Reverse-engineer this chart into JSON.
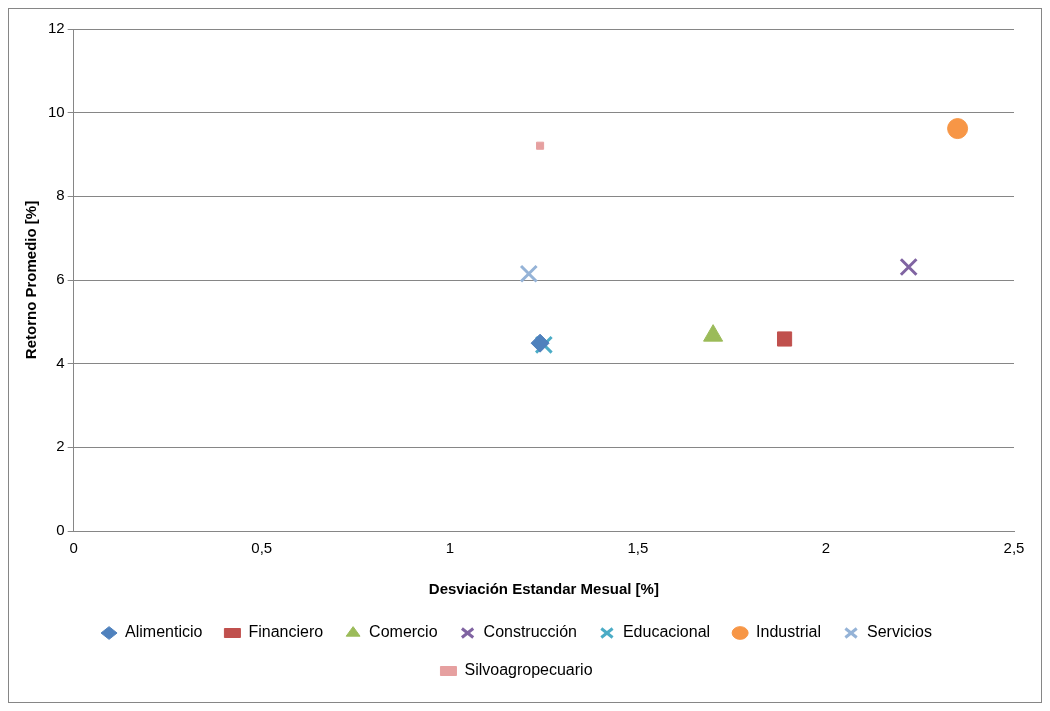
{
  "chart_data": {
    "type": "scatter",
    "xlabel": "Desviación Estandar Mesual [%]",
    "ylabel": "Retorno Promedio [%]",
    "xlim": [
      0,
      2.5
    ],
    "xticks": [
      0,
      {
        "value": 0.5,
        "label": "0,5"
      },
      1,
      {
        "value": 1.5,
        "label": "1,5"
      },
      2,
      {
        "value": 2.5,
        "label": "2,5"
      }
    ],
    "ylim": [
      0,
      12
    ],
    "yticks": [
      0,
      2,
      4,
      6,
      8,
      10,
      12
    ],
    "grid": "y",
    "legend": "bottom",
    "series": [
      {
        "name": "Alimenticio",
        "color": "#4f81bd",
        "marker": "diamond",
        "x": [
          1.24
        ],
        "values": [
          4.49
        ]
      },
      {
        "name": "Financiero",
        "color": "#c0504d",
        "marker": "square",
        "x": [
          1.89
        ],
        "values": [
          4.59
        ]
      },
      {
        "name": "Comercio",
        "color": "#9bbb59",
        "marker": "triangle",
        "x": [
          1.7
        ],
        "values": [
          4.67
        ]
      },
      {
        "name": "Construcción",
        "color": "#8064a2",
        "marker": "cross",
        "x": [
          2.22
        ],
        "values": [
          6.31
        ]
      },
      {
        "name": "Educacional",
        "color": "#4bacc6",
        "marker": "cross",
        "x": [
          1.25
        ],
        "values": [
          4.45
        ]
      },
      {
        "name": "Industrial",
        "color": "#f79646",
        "marker": "circle",
        "x": [
          2.35
        ],
        "values": [
          9.62
        ]
      },
      {
        "name": "Servicios",
        "color": "#95b3d7",
        "marker": "cross",
        "x": [
          1.21
        ],
        "values": [
          6.15
        ]
      },
      {
        "name": "Silvoagropecuario",
        "color": "#e6a0a0",
        "marker": "square",
        "x": [
          1.24
        ],
        "values": [
          9.21
        ]
      }
    ]
  }
}
